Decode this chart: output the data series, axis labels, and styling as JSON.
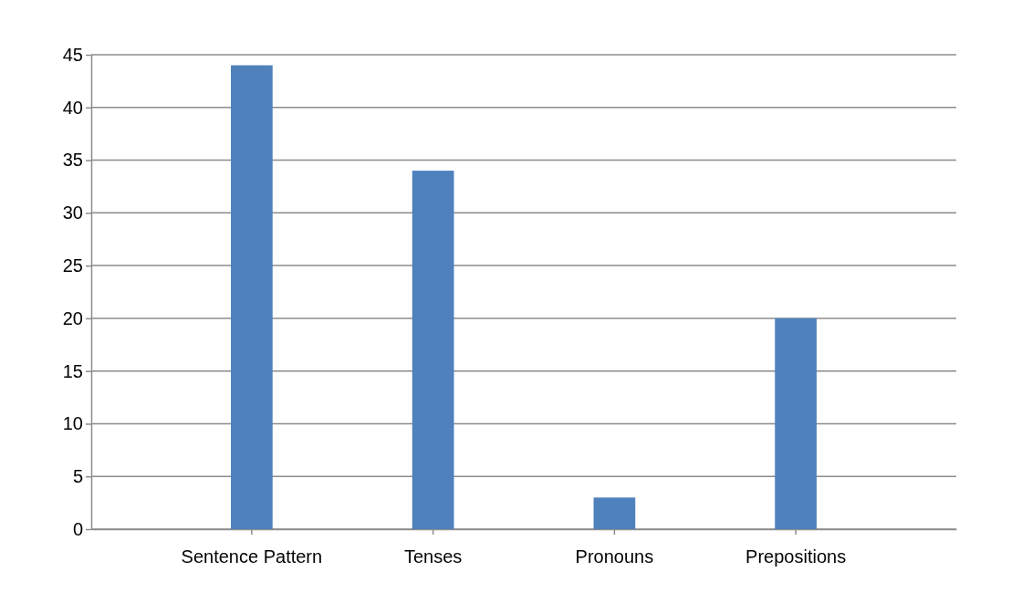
{
  "chart_data": {
    "type": "bar",
    "categories": [
      "Sentence Pattern",
      "Tenses",
      "Pronouns",
      "Prepositions"
    ],
    "values": [
      44,
      34,
      3,
      20
    ],
    "color": "#4f81bd",
    "ylim": [
      0,
      45
    ],
    "yticks": [
      0,
      5,
      10,
      15,
      20,
      25,
      30,
      35,
      40,
      45
    ],
    "grid": "y"
  }
}
